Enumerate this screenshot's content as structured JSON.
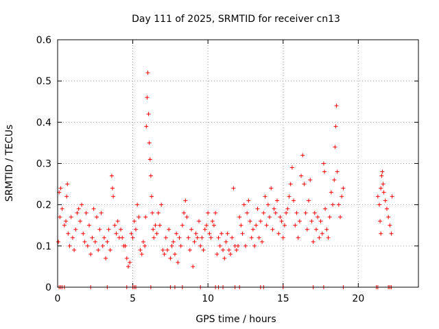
{
  "chart_data": {
    "type": "scatter",
    "title": "Day 111 of 2025, SRMTID for receiver cn13",
    "xlabel": "GPS time / hours",
    "ylabel": "SRMTID / TECUs",
    "xlim": [
      0,
      24
    ],
    "ylim": [
      0,
      0.6
    ],
    "xticks": [
      0,
      5,
      10,
      15,
      20
    ],
    "yticks": [
      0,
      0.1,
      0.2,
      0.3,
      0.4,
      0.5,
      0.6
    ],
    "xtick_labels": [
      "0",
      "5",
      "10",
      "15",
      "20"
    ],
    "ytick_labels": [
      "0",
      "0.1",
      "0.2",
      "0.3",
      "0.4",
      "0.5",
      "0.6"
    ],
    "grid": true,
    "series": [
      {
        "name": "SRMTID",
        "color": "#ff0000",
        "marker": "plus",
        "points": [
          [
            0.05,
            0.11
          ],
          [
            0.1,
            0.23
          ],
          [
            0.15,
            0.17
          ],
          [
            0.2,
            0.24
          ],
          [
            0.3,
            0.19
          ],
          [
            0.45,
            0.15
          ],
          [
            0.55,
            0.16
          ],
          [
            0.6,
            0.22
          ],
          [
            0.65,
            0.25
          ],
          [
            0.7,
            0.13
          ],
          [
            0.8,
            0.1
          ],
          [
            0.9,
            0.17
          ],
          [
            1.0,
            0.12
          ],
          [
            1.1,
            0.09
          ],
          [
            1.2,
            0.14
          ],
          [
            1.3,
            0.18
          ],
          [
            1.4,
            0.19
          ],
          [
            1.5,
            0.16
          ],
          [
            1.6,
            0.2
          ],
          [
            1.7,
            0.13
          ],
          [
            1.8,
            0.11
          ],
          [
            1.9,
            0.18
          ],
          [
            2.0,
            0.1
          ],
          [
            2.1,
            0.15
          ],
          [
            2.2,
            0.08
          ],
          [
            2.3,
            0.12
          ],
          [
            2.4,
            0.19
          ],
          [
            2.5,
            0.11
          ],
          [
            2.6,
            0.17
          ],
          [
            2.7,
            0.09
          ],
          [
            2.8,
            0.14
          ],
          [
            2.9,
            0.18
          ],
          [
            3.0,
            0.1
          ],
          [
            3.1,
            0.12
          ],
          [
            3.2,
            0.07
          ],
          [
            3.3,
            0.11
          ],
          [
            3.4,
            0.14
          ],
          [
            3.5,
            0.09
          ],
          [
            3.6,
            0.27
          ],
          [
            3.65,
            0.24
          ],
          [
            3.7,
            0.22
          ],
          [
            3.8,
            0.15
          ],
          [
            3.9,
            0.13
          ],
          [
            4.0,
            0.16
          ],
          [
            4.1,
            0.12
          ],
          [
            4.2,
            0.14
          ],
          [
            4.3,
            0.12
          ],
          [
            4.4,
            0.1
          ],
          [
            4.5,
            0.1
          ],
          [
            4.6,
            0.07
          ],
          [
            4.7,
            0.05
          ],
          [
            4.8,
            0.06
          ],
          [
            4.9,
            0.13
          ],
          [
            5.0,
            0.12
          ],
          [
            5.1,
            0.16
          ],
          [
            5.2,
            0.14
          ],
          [
            5.3,
            0.2
          ],
          [
            5.4,
            0.17
          ],
          [
            5.5,
            0.09
          ],
          [
            5.6,
            0.08
          ],
          [
            5.7,
            0.11
          ],
          [
            5.8,
            0.1
          ],
          [
            5.85,
            0.17
          ],
          [
            5.9,
            0.39
          ],
          [
            5.95,
            0.46
          ],
          [
            6.0,
            0.52
          ],
          [
            6.05,
            0.42
          ],
          [
            6.1,
            0.35
          ],
          [
            6.15,
            0.31
          ],
          [
            6.2,
            0.27
          ],
          [
            6.25,
            0.22
          ],
          [
            6.3,
            0.18
          ],
          [
            6.35,
            0.14
          ],
          [
            6.4,
            0.12
          ],
          [
            6.5,
            0.15
          ],
          [
            6.6,
            0.13
          ],
          [
            6.7,
            0.18
          ],
          [
            6.8,
            0.15
          ],
          [
            6.9,
            0.2
          ],
          [
            7.0,
            0.09
          ],
          [
            7.1,
            0.08
          ],
          [
            7.2,
            0.12
          ],
          [
            7.3,
            0.09
          ],
          [
            7.4,
            0.14
          ],
          [
            7.5,
            0.07
          ],
          [
            7.6,
            0.1
          ],
          [
            7.7,
            0.11
          ],
          [
            7.8,
            0.08
          ],
          [
            7.9,
            0.13
          ],
          [
            8.0,
            0.06
          ],
          [
            8.1,
            0.12
          ],
          [
            8.2,
            0.1
          ],
          [
            8.3,
            0.15
          ],
          [
            8.4,
            0.18
          ],
          [
            8.5,
            0.21
          ],
          [
            8.6,
            0.17
          ],
          [
            8.7,
            0.12
          ],
          [
            8.8,
            0.09
          ],
          [
            8.9,
            0.14
          ],
          [
            9.0,
            0.05
          ],
          [
            9.1,
            0.11
          ],
          [
            9.2,
            0.13
          ],
          [
            9.3,
            0.12
          ],
          [
            9.4,
            0.16
          ],
          [
            9.5,
            0.1
          ],
          [
            9.6,
            0.12
          ],
          [
            9.7,
            0.09
          ],
          [
            9.8,
            0.14
          ],
          [
            9.9,
            0.15
          ],
          [
            10.0,
            0.18
          ],
          [
            10.1,
            0.13
          ],
          [
            10.2,
            0.12
          ],
          [
            10.3,
            0.16
          ],
          [
            10.4,
            0.15
          ],
          [
            10.5,
            0.18
          ],
          [
            10.6,
            0.08
          ],
          [
            10.7,
            0.12
          ],
          [
            10.8,
            0.1
          ],
          [
            10.9,
            0.13
          ],
          [
            11.0,
            0.09
          ],
          [
            11.1,
            0.07
          ],
          [
            11.2,
            0.11
          ],
          [
            11.3,
            0.13
          ],
          [
            11.4,
            0.09
          ],
          [
            11.5,
            0.08
          ],
          [
            11.6,
            0.12
          ],
          [
            11.7,
            0.24
          ],
          [
            11.8,
            0.1
          ],
          [
            11.9,
            0.09
          ],
          [
            12.0,
            0.1
          ],
          [
            12.1,
            0.17
          ],
          [
            12.2,
            0.15
          ],
          [
            12.3,
            0.13
          ],
          [
            12.4,
            0.2
          ],
          [
            12.5,
            0.1
          ],
          [
            12.6,
            0.18
          ],
          [
            12.7,
            0.21
          ],
          [
            12.8,
            0.16
          ],
          [
            12.9,
            0.12
          ],
          [
            13.0,
            0.14
          ],
          [
            13.1,
            0.1
          ],
          [
            13.2,
            0.15
          ],
          [
            13.3,
            0.19
          ],
          [
            13.4,
            0.12
          ],
          [
            13.5,
            0.16
          ],
          [
            13.6,
            0.11
          ],
          [
            13.7,
            0.18
          ],
          [
            13.8,
            0.22
          ],
          [
            13.9,
            0.15
          ],
          [
            14.0,
            0.2
          ],
          [
            14.1,
            0.17
          ],
          [
            14.2,
            0.24
          ],
          [
            14.3,
            0.14
          ],
          [
            14.4,
            0.19
          ],
          [
            14.5,
            0.18
          ],
          [
            14.6,
            0.21
          ],
          [
            14.7,
            0.13
          ],
          [
            14.8,
            0.17
          ],
          [
            14.9,
            0.16
          ],
          [
            15.0,
            0.12
          ],
          [
            15.1,
            0.15
          ],
          [
            15.2,
            0.18
          ],
          [
            15.3,
            0.19
          ],
          [
            15.4,
            0.22
          ],
          [
            15.5,
            0.25
          ],
          [
            15.6,
            0.29
          ],
          [
            15.7,
            0.21
          ],
          [
            15.8,
            0.15
          ],
          [
            15.9,
            0.18
          ],
          [
            16.0,
            0.12
          ],
          [
            16.1,
            0.16
          ],
          [
            16.2,
            0.27
          ],
          [
            16.3,
            0.32
          ],
          [
            16.4,
            0.25
          ],
          [
            16.5,
            0.18
          ],
          [
            16.6,
            0.14
          ],
          [
            16.7,
            0.21
          ],
          [
            16.8,
            0.26
          ],
          [
            16.9,
            0.16
          ],
          [
            17.0,
            0.11
          ],
          [
            17.1,
            0.18
          ],
          [
            17.2,
            0.14
          ],
          [
            17.3,
            0.17
          ],
          [
            17.4,
            0.12
          ],
          [
            17.5,
            0.16
          ],
          [
            17.6,
            0.13
          ],
          [
            17.7,
            0.3
          ],
          [
            17.75,
            0.28
          ],
          [
            17.8,
            0.19
          ],
          [
            17.9,
            0.14
          ],
          [
            18.0,
            0.12
          ],
          [
            18.1,
            0.17
          ],
          [
            18.2,
            0.23
          ],
          [
            18.3,
            0.2
          ],
          [
            18.4,
            0.26
          ],
          [
            18.45,
            0.34
          ],
          [
            18.5,
            0.39
          ],
          [
            18.55,
            0.44
          ],
          [
            18.6,
            0.28
          ],
          [
            18.7,
            0.2
          ],
          [
            18.8,
            0.17
          ],
          [
            18.9,
            0.22
          ],
          [
            19.0,
            0.24
          ],
          [
            21.3,
            0.22
          ],
          [
            21.4,
            0.2
          ],
          [
            21.5,
            0.24
          ],
          [
            21.55,
            0.27
          ],
          [
            21.6,
            0.28
          ],
          [
            21.65,
            0.25
          ],
          [
            21.7,
            0.23
          ],
          [
            21.8,
            0.21
          ],
          [
            21.9,
            0.19
          ],
          [
            22.0,
            0.17
          ],
          [
            22.1,
            0.15
          ],
          [
            22.2,
            0.13
          ],
          [
            22.25,
            0.22
          ],
          [
            21.45,
            0.16
          ],
          [
            21.5,
            0.13
          ]
        ],
        "zero_points": [
          0.1,
          0.2,
          0.3,
          0.45,
          2.2,
          3.3,
          4.6,
          5.0,
          5.1,
          5.2,
          6.2,
          7.5,
          7.8,
          8.3,
          9.5,
          10.5,
          10.7,
          11.0,
          11.8,
          12.1,
          13.5,
          13.7,
          15.0,
          17.0,
          17.7,
          19.0,
          21.2,
          21.3,
          22.0,
          22.1,
          22.2
        ]
      }
    ]
  }
}
